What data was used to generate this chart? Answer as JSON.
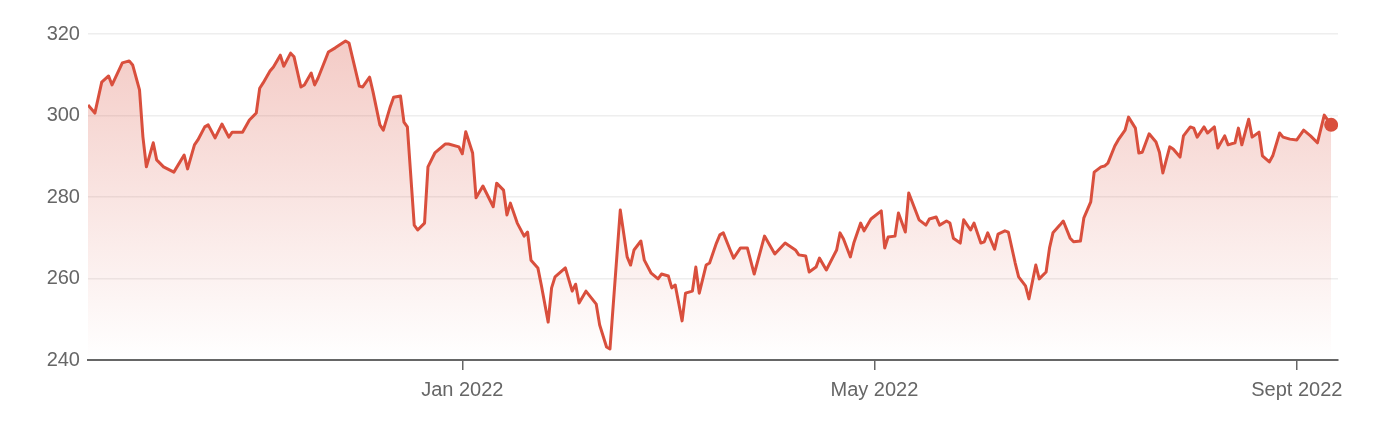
{
  "chart_data": {
    "type": "area",
    "x": [
      "2021-09-14",
      "2021-09-16",
      "2021-09-18",
      "2021-09-20",
      "2021-09-21",
      "2021-09-24",
      "2021-09-26",
      "2021-09-27",
      "2021-09-29",
      "2021-09-30",
      "2021-10-01",
      "2021-10-03",
      "2021-10-04",
      "2021-10-06",
      "2021-10-09",
      "2021-10-12",
      "2021-10-13",
      "2021-10-15",
      "2021-10-16",
      "2021-10-18",
      "2021-10-19",
      "2021-10-21",
      "2021-10-23",
      "2021-10-25",
      "2021-10-26",
      "2021-10-29",
      "2021-10-31",
      "2021-11-02",
      "2021-11-03",
      "2021-11-04",
      "2021-11-06",
      "2021-11-07",
      "2021-11-09",
      "2021-11-10",
      "2021-11-12",
      "2021-11-13",
      "2021-11-15",
      "2021-11-16",
      "2021-11-18",
      "2021-11-19",
      "2021-11-20",
      "2021-11-23",
      "2021-11-25",
      "2021-11-28",
      "2021-11-29",
      "2021-12-02",
      "2021-12-03",
      "2021-12-05",
      "2021-12-06",
      "2021-12-08",
      "2021-12-09",
      "2021-12-11",
      "2021-12-12",
      "2021-12-14",
      "2021-12-15",
      "2021-12-16",
      "2021-12-18",
      "2021-12-19",
      "2021-12-21",
      "2021-12-22",
      "2021-12-24",
      "2021-12-27",
      "2021-12-28",
      "2021-12-31",
      "2022-01-01",
      "2022-01-02",
      "2022-01-04",
      "2022-01-05",
      "2022-01-07",
      "2022-01-10",
      "2022-01-11",
      "2022-01-13",
      "2022-01-14",
      "2022-01-15",
      "2022-01-17",
      "2022-01-19",
      "2022-01-20",
      "2022-01-21",
      "2022-01-23",
      "2022-01-24",
      "2022-01-26",
      "2022-01-27",
      "2022-01-28",
      "2022-01-31",
      "2022-02-02",
      "2022-02-03",
      "2022-02-04",
      "2022-02-06",
      "2022-02-09",
      "2022-02-10",
      "2022-02-12",
      "2022-02-13",
      "2022-02-16",
      "2022-02-18",
      "2022-02-19",
      "2022-02-20",
      "2022-02-22",
      "2022-02-23",
      "2022-02-25",
      "2022-02-27",
      "2022-02-28",
      "2022-03-02",
      "2022-03-03",
      "2022-03-04",
      "2022-03-06",
      "2022-03-07",
      "2022-03-09",
      "2022-03-10",
      "2022-03-11",
      "2022-03-13",
      "2022-03-14",
      "2022-03-16",
      "2022-03-17",
      "2022-03-18",
      "2022-03-20",
      "2022-03-21",
      "2022-03-23",
      "2022-03-25",
      "2022-03-27",
      "2022-03-30",
      "2022-04-02",
      "2022-04-05",
      "2022-04-08",
      "2022-04-09",
      "2022-04-11",
      "2022-04-12",
      "2022-04-14",
      "2022-04-15",
      "2022-04-17",
      "2022-04-20",
      "2022-04-21",
      "2022-04-22",
      "2022-04-24",
      "2022-04-25",
      "2022-04-27",
      "2022-04-28",
      "2022-04-30",
      "2022-05-03",
      "2022-05-04",
      "2022-05-05",
      "2022-05-07",
      "2022-05-08",
      "2022-05-10",
      "2022-05-11",
      "2022-05-14",
      "2022-05-16",
      "2022-05-17",
      "2022-05-19",
      "2022-05-20",
      "2022-05-22",
      "2022-05-23",
      "2022-05-24",
      "2022-05-26",
      "2022-05-27",
      "2022-05-29",
      "2022-05-30",
      "2022-06-01",
      "2022-06-02",
      "2022-06-03",
      "2022-06-05",
      "2022-06-06",
      "2022-06-08",
      "2022-06-09",
      "2022-06-11",
      "2022-06-12",
      "2022-06-14",
      "2022-06-15",
      "2022-06-17",
      "2022-06-18",
      "2022-06-20",
      "2022-06-21",
      "2022-06-22",
      "2022-06-24",
      "2022-06-25",
      "2022-06-27",
      "2022-06-28",
      "2022-06-30",
      "2022-07-01",
      "2022-07-03",
      "2022-07-04",
      "2022-07-06",
      "2022-07-07",
      "2022-07-08",
      "2022-07-10",
      "2022-07-11",
      "2022-07-13",
      "2022-07-14",
      "2022-07-16",
      "2022-07-17",
      "2022-07-18",
      "2022-07-20",
      "2022-07-22",
      "2022-07-23",
      "2022-07-24",
      "2022-07-26",
      "2022-07-27",
      "2022-07-29",
      "2022-07-30",
      "2022-08-01",
      "2022-08-02",
      "2022-08-03",
      "2022-08-05",
      "2022-08-06",
      "2022-08-08",
      "2022-08-09",
      "2022-08-11",
      "2022-08-12",
      "2022-08-14",
      "2022-08-15",
      "2022-08-16",
      "2022-08-18",
      "2022-08-19",
      "2022-08-21",
      "2022-08-22",
      "2022-08-24",
      "2022-08-25",
      "2022-08-27",
      "2022-08-28",
      "2022-08-30",
      "2022-09-01",
      "2022-09-03",
      "2022-09-05",
      "2022-09-07",
      "2022-09-09",
      "2022-09-11"
    ],
    "series": [
      {
        "color": "#d94f3d",
        "values": [
          302.6,
          300.6,
          308.2,
          309.7,
          307.5,
          312.9,
          313.4,
          312.4,
          306.3,
          294.7,
          287.4,
          293.3,
          289.1,
          287.4,
          286.1,
          290.3,
          286.9,
          292.8,
          294.0,
          297.2,
          297.7,
          294.5,
          297.9,
          294.7,
          295.9,
          295.9,
          298.9,
          300.6,
          306.7,
          308.0,
          310.9,
          311.9,
          314.8,
          312.1,
          315.3,
          314.4,
          307.0,
          307.5,
          310.4,
          307.5,
          309.2,
          315.6,
          316.6,
          318.3,
          317.8,
          307.2,
          307.0,
          309.4,
          305.8,
          297.7,
          296.4,
          302.1,
          304.5,
          304.8,
          298.4,
          297.2,
          273.1,
          271.9,
          273.6,
          287.4,
          290.8,
          293.0,
          293.0,
          292.3,
          290.6,
          296.0,
          290.8,
          279.8,
          282.7,
          277.6,
          283.4,
          281.7,
          275.6,
          278.5,
          273.6,
          270.4,
          271.4,
          264.5,
          262.6,
          258.4,
          249.3,
          257.7,
          260.4,
          262.6,
          256.9,
          258.6,
          254.0,
          256.9,
          253.7,
          248.6,
          243.2,
          242.7,
          276.8,
          265.3,
          263.3,
          267.0,
          269.2,
          264.5,
          261.3,
          259.9,
          261.1,
          260.6,
          257.7,
          258.4,
          249.6,
          256.4,
          256.9,
          262.8,
          256.4,
          263.3,
          263.8,
          268.7,
          270.7,
          271.2,
          267.0,
          265.0,
          267.5,
          267.5,
          261.1,
          270.4,
          266.0,
          268.7,
          267.0,
          265.8,
          265.5,
          261.6,
          262.8,
          265.0,
          262.1,
          267.0,
          271.2,
          269.7,
          265.3,
          268.7,
          273.6,
          271.7,
          274.6,
          276.6,
          267.5,
          270.2,
          270.4,
          276.1,
          271.4,
          281.0,
          274.4,
          273.1,
          274.6,
          275.1,
          273.1,
          274.1,
          273.6,
          269.9,
          268.7,
          274.4,
          271.9,
          273.6,
          268.7,
          269.0,
          271.2,
          267.2,
          270.9,
          271.7,
          271.4,
          263.8,
          260.4,
          258.2,
          255.0,
          263.3,
          259.9,
          261.6,
          267.5,
          271.2,
          273.1,
          274.1,
          269.9,
          269.0,
          269.2,
          274.9,
          278.8,
          286.1,
          287.4,
          287.6,
          288.3,
          292.5,
          294.0,
          296.4,
          299.6,
          296.9,
          290.8,
          291.0,
          295.5,
          293.5,
          291.0,
          285.9,
          292.3,
          291.8,
          289.8,
          295.0,
          297.2,
          296.9,
          294.7,
          297.2,
          295.7,
          297.2,
          292.0,
          295.0,
          292.8,
          293.3,
          296.9,
          292.8,
          299.1,
          294.7,
          295.9,
          290.1,
          288.6,
          290.1,
          295.7,
          294.7,
          294.2,
          294.0,
          296.4,
          295.0,
          293.3,
          300.1,
          297.7
        ]
      }
    ],
    "xlim": [
      "2021-09-14",
      "2022-09-13"
    ],
    "xticks": [
      {
        "value": "2022-01-01",
        "label": "Jan 2022"
      },
      {
        "value": "2022-05-01",
        "label": "May 2022"
      },
      {
        "value": "2022-09-01",
        "label": "Sept 2022"
      }
    ],
    "ylim": [
      240,
      320
    ],
    "yticks": [
      240,
      260,
      280,
      300,
      320
    ],
    "grid": "y",
    "legend": false
  }
}
